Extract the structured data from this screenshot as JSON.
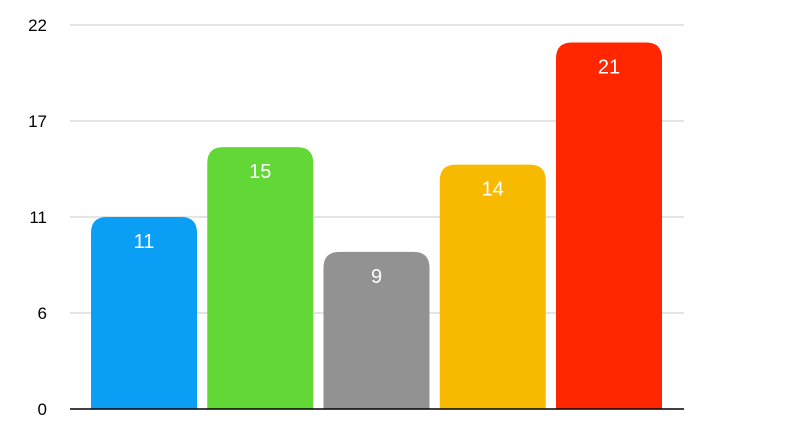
{
  "chart_data": {
    "type": "bar",
    "title": "",
    "xlabel": "",
    "ylabel": "",
    "categories": [
      "",
      "",
      "",
      "",
      ""
    ],
    "values": [
      11,
      15,
      9,
      14,
      21
    ],
    "colors": [
      "#0a9ff5",
      "#61d836",
      "#929292",
      "#f8ba00",
      "#ff2600"
    ],
    "ylim": [
      0,
      22
    ],
    "yticks": [
      0,
      5.5,
      11,
      16.5,
      22
    ],
    "ytick_labels": [
      "0",
      "6",
      "11",
      "17",
      "22"
    ],
    "grid": true,
    "data_labels": [
      "11",
      "15",
      "9",
      "14",
      "21"
    ]
  }
}
